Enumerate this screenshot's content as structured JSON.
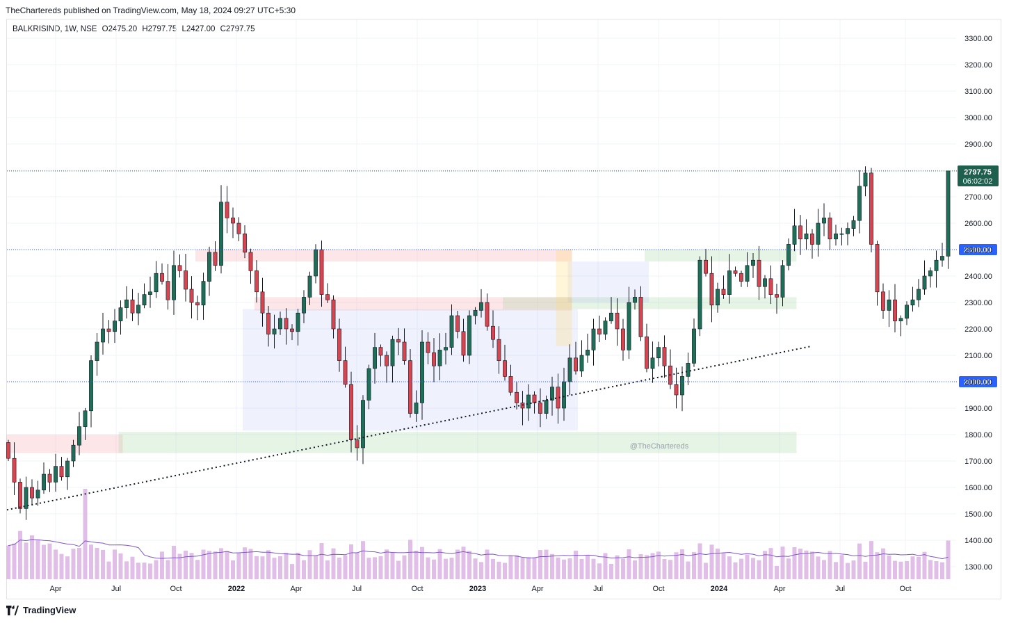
{
  "header": {
    "publish_text": "TheChartereds published on TradingView.com, May 18, 2024 09:27 UTC+5:30"
  },
  "legend": {
    "symbol": "BALKRISIND, 1W, NSE",
    "open": "O2475.20",
    "high": "H2797.75",
    "low": "L2427.00",
    "close": "C2797.75"
  },
  "price_tag": {
    "price": "2797.75",
    "countdown": "06:02:02"
  },
  "level_tags": [
    "2500.00",
    "2000.00"
  ],
  "watermark": "@TheChartereds",
  "footer": {
    "brand": "TradingView"
  },
  "colors": {
    "up": "#26a69a",
    "up_body": "#1f6e58",
    "down": "#d64550",
    "volume": "#e1bee7",
    "volume_ma": "#7e57c2",
    "price_line": "#1f5f4e",
    "level_tag": "#2962ff"
  },
  "chart_data": {
    "type": "candlestick",
    "title": "BALKRISIND, 1W, NSE",
    "ylim": [
      1260,
      3350
    ],
    "y_ticks": [
      3300,
      3200,
      3100,
      3000,
      2900,
      2800,
      2700,
      2600,
      2500,
      2400,
      2300,
      2200,
      2100,
      2000,
      1900,
      1800,
      1700,
      1600,
      1500,
      1400,
      1300
    ],
    "x_labels": [
      "Apr",
      "Jul",
      "Oct",
      "2022",
      "Apr",
      "Jul",
      "Oct",
      "2023",
      "Apr",
      "Jul",
      "Oct",
      "2024",
      "Apr",
      "Jul",
      "Oct"
    ],
    "horizontal_levels": [
      2797.75,
      2500,
      2000
    ],
    "last": {
      "open": 2475.2,
      "high": 2797.75,
      "low": 2427.0,
      "close": 2797.75
    },
    "trendline": {
      "from": {
        "week": 0,
        "price": 1515
      },
      "to": {
        "week": 136,
        "price": 2135
      }
    },
    "zones": [
      {
        "kind": "supply",
        "weeks": [
          0,
          19
        ],
        "price": [
          1730,
          1800
        ]
      },
      {
        "kind": "demand",
        "weeks": [
          19,
          133
        ],
        "price": [
          1730,
          1810
        ]
      },
      {
        "kind": "supply",
        "weeks": [
          32,
          95
        ],
        "price": [
          2455,
          2500
        ]
      },
      {
        "kind": "supply",
        "weeks": [
          42,
          95
        ],
        "price": [
          2270,
          2320
        ]
      },
      {
        "kind": "range",
        "weeks": [
          40,
          96
        ],
        "price": [
          1815,
          2275
        ]
      },
      {
        "kind": "demand",
        "weeks": [
          84,
          133
        ],
        "price": [
          2275,
          2320
        ]
      },
      {
        "kind": "range",
        "weeks": [
          95,
          108
        ],
        "price": [
          2300,
          2455
        ]
      },
      {
        "kind": "demand",
        "weeks": [
          108,
          133
        ],
        "price": [
          2455,
          2500
        ]
      },
      {
        "kind": "highlight",
        "weeks": [
          93,
          95
        ],
        "price": [
          2135,
          2500
        ]
      }
    ],
    "closes": [
      1710,
      1620,
      1520,
      1600,
      1560,
      1590,
      1650,
      1620,
      1680,
      1640,
      1700,
      1760,
      1830,
      1890,
      2080,
      2150,
      2200,
      2190,
      2230,
      2280,
      2310,
      2260,
      2290,
      2330,
      2340,
      2410,
      2380,
      2310,
      2440,
      2420,
      2350,
      2300,
      2290,
      2380,
      2490,
      2440,
      2680,
      2620,
      2600,
      2560,
      2490,
      2420,
      2340,
      2260,
      2180,
      2200,
      2240,
      2200,
      2190,
      2260,
      2320,
      2400,
      2500,
      2330,
      2310,
      2200,
      2080,
      1990,
      1780,
      1750,
      1930,
      2050,
      2130,
      2100,
      2060,
      2160,
      2150,
      2080,
      1880,
      1920,
      2150,
      2110,
      2060,
      2120,
      2130,
      2250,
      2190,
      2100,
      2250,
      2270,
      2300,
      2210,
      2160,
      2080,
      2020,
      1960,
      1920,
      1900,
      1950,
      1920,
      1880,
      1930,
      1980,
      1900,
      2000,
      2090,
      2040,
      2100,
      2120,
      2200,
      2180,
      2230,
      2260,
      2200,
      2120,
      2300,
      2320,
      2170,
      2050,
      2090,
      2130,
      2060,
      1990,
      1950,
      2020,
      2070,
      2200,
      2460,
      2410,
      2290,
      2350,
      2330,
      2420,
      2410,
      2380,
      2440,
      2460,
      2360,
      2390,
      2330,
      2320,
      2440,
      2520,
      2590,
      2540,
      2560,
      2520,
      2600,
      2620,
      2540,
      2560,
      2560,
      2580,
      2610,
      2740,
      2790,
      2520,
      2340,
      2270,
      2310,
      2230,
      2240,
      2290,
      2310,
      2350,
      2400,
      2420,
      2460,
      2475,
      2797.75
    ]
  }
}
